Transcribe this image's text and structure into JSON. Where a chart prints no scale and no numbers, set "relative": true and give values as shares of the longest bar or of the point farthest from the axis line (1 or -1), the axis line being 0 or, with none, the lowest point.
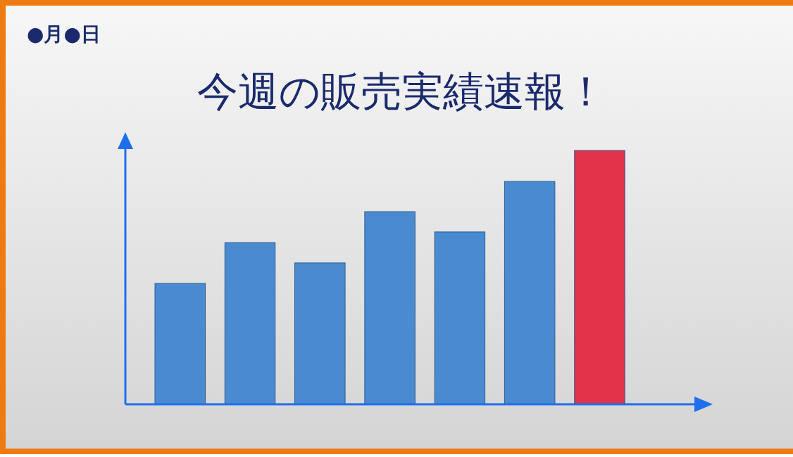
{
  "chart_data": {
    "type": "bar",
    "title": "今週の販売実績速報！",
    "annotations": [
      "●月●日"
    ],
    "relative": true,
    "categories": [
      null,
      null,
      null,
      null,
      null,
      null,
      null
    ],
    "values": [
      0.476,
      0.637,
      0.557,
      0.759,
      0.679,
      0.878,
      1
    ],
    "colors": [
      "#4a8ad0",
      "#4a8ad0",
      "#4a8ad0",
      "#4a8ad0",
      "#4a8ad0",
      "#4a8ad0",
      "#e0334a"
    ]
  }
}
